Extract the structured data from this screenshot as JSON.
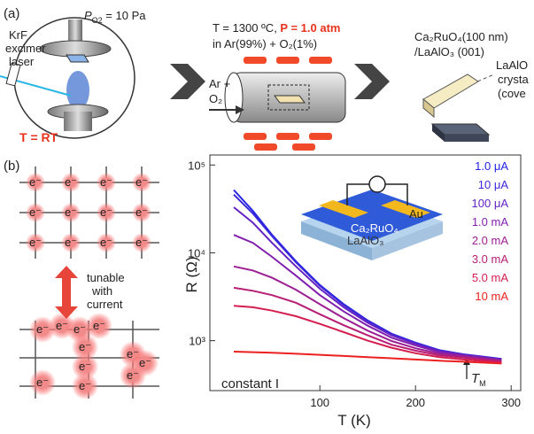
{
  "panel_a": {
    "label": "(a)",
    "laser": [
      "KrF",
      "excimer",
      "laser"
    ],
    "pressure": {
      "main": "P",
      "sub": "O2",
      "rest": " = 10 Pa"
    },
    "temp_rt": "T = RT",
    "anneal_temp": "T = 1300 ºC, ",
    "anneal_pressure": "P = 1.0 atm",
    "atmosphere": "in Ar(99%) + O₂(1%)",
    "gas": [
      "Ar +",
      "O₂"
    ],
    "sample": [
      "Ca₂RuO₄(100 nm)",
      "/LaAlO₃ (001)"
    ],
    "cover": [
      "LaAlO",
      "crysta",
      "(cove"
    ]
  },
  "panel_b": {
    "label": "(b)",
    "electron": "e⁻",
    "tunable": [
      "tunable",
      "with",
      "current"
    ],
    "inset": [
      "Au",
      "Ca₂RuO₄",
      "LaAlO₃"
    ]
  },
  "chart_data": {
    "type": "line",
    "x_label": "T (K)",
    "y_label": "R (Ω)",
    "log_y": true,
    "x": [
      10,
      30,
      50,
      75,
      100,
      125,
      150,
      175,
      200,
      225,
      250,
      275,
      290
    ],
    "series": [
      {
        "name": "1.0 μA",
        "color": "#2323e6",
        "values": [
          52000,
          30000,
          16000,
          8000,
          4300,
          2600,
          1700,
          1200,
          950,
          780,
          700,
          650,
          620
        ]
      },
      {
        "name": "10 μA",
        "color": "#3b27d8",
        "values": [
          46000,
          28000,
          15500,
          7800,
          4200,
          2550,
          1680,
          1190,
          940,
          775,
          695,
          645,
          615
        ]
      },
      {
        "name": "100 μA",
        "color": "#6422c4",
        "values": [
          33000,
          22000,
          13000,
          7000,
          3900,
          2400,
          1600,
          1150,
          920,
          760,
          690,
          640,
          610
        ]
      },
      {
        "name": "1.0 mA",
        "color": "#821fae",
        "values": [
          16000,
          13000,
          9000,
          5500,
          3300,
          2150,
          1480,
          1080,
          880,
          740,
          680,
          630,
          600
        ]
      },
      {
        "name": "2.0 mA",
        "color": "#9c1f94",
        "values": [
          7000,
          6300,
          5200,
          3800,
          2600,
          1800,
          1300,
          990,
          820,
          710,
          660,
          620,
          590
        ]
      },
      {
        "name": "3.0 mA",
        "color": "#b81d74",
        "values": [
          4000,
          3700,
          3300,
          2700,
          2000,
          1500,
          1150,
          900,
          770,
          680,
          640,
          600,
          580
        ]
      },
      {
        "name": "5.0 mA",
        "color": "#d41e50",
        "values": [
          2500,
          2400,
          2200,
          1900,
          1550,
          1250,
          1000,
          830,
          720,
          650,
          610,
          580,
          560
        ]
      },
      {
        "name": "10 mA",
        "color": "#ec2020",
        "values": [
          750,
          740,
          730,
          710,
          690,
          670,
          650,
          630,
          610,
          590,
          575,
          560,
          550
        ]
      }
    ],
    "xlim": [
      -15,
      310
    ],
    "xticks": [
      100,
      200,
      300
    ],
    "ylim": [
      270,
      130000
    ],
    "yticks": [
      {
        "value": 1000,
        "label": "10³"
      },
      {
        "value": 10000,
        "label": "10⁴"
      },
      {
        "value": 100000,
        "label": "10⁵"
      }
    ],
    "annotation": "constant I",
    "transition": {
      "main": "T",
      "sub": "M"
    }
  }
}
